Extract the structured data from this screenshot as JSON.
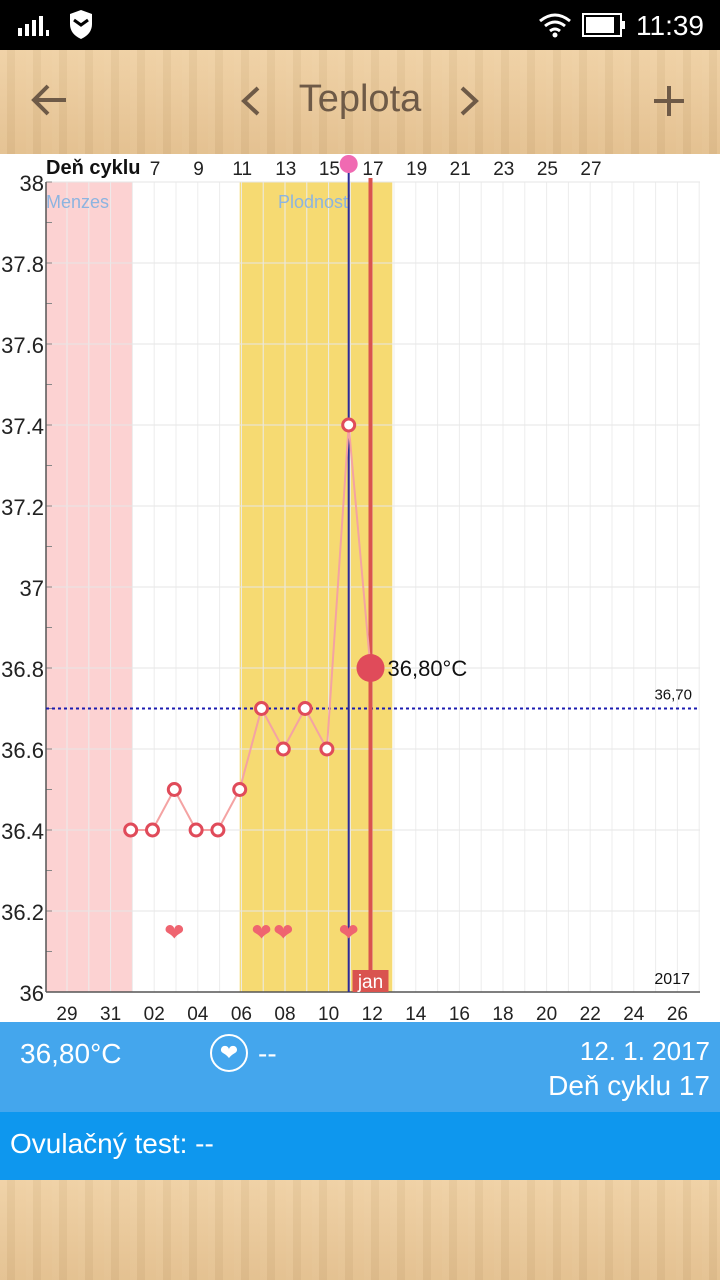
{
  "status_bar": {
    "time": "11:39"
  },
  "toolbar": {
    "title": "Teplota",
    "back_icon": "arrow-left-icon",
    "prev_icon": "chevron-left-icon",
    "next_icon": "chevron-right-icon",
    "add_icon": "plus-icon"
  },
  "colors": {
    "menses": "#fcd2d2",
    "fertile": "#f6da72",
    "line": "#f4a3a3",
    "marker": "#e04b5a",
    "today_line": "#d9534f",
    "ovulation_line": "#2b2b9a",
    "coverline": "#1b1bb0",
    "panel_blue": "#44a6ed",
    "panel_blue_dark": "#0e97ee"
  },
  "chart_data": {
    "type": "line",
    "ylim": [
      36,
      38
    ],
    "y_ticks": [
      "36",
      "36.2",
      "36.4",
      "36.6",
      "36.8",
      "37",
      "37.2",
      "37.4",
      "37.6",
      "37.8",
      "38"
    ],
    "x_tick_labels": [
      "29",
      "31",
      "02",
      "04",
      "06",
      "08",
      "10",
      "12",
      "14",
      "16",
      "18",
      "20",
      "22",
      "24",
      "26"
    ],
    "top_label": "Deň cyklu",
    "top_tick_labels": [
      "7",
      "9",
      "11",
      "13",
      "15",
      "17",
      "19",
      "21",
      "23",
      "25",
      "27"
    ],
    "menses_label": "Menzes",
    "fertile_label": "Plodnosť",
    "coverline": 36.7,
    "coverline_label": "36,70",
    "year_label": "2017",
    "month_label": "jan",
    "current_value_label": "36,80°C",
    "series": [
      {
        "x": [
          1,
          2,
          3,
          4,
          5,
          6,
          7,
          8,
          9,
          10,
          11,
          12
        ],
        "values": [
          36.4,
          36.4,
          36.5,
          36.4,
          36.4,
          36.5,
          36.7,
          36.6,
          36.7,
          36.6,
          37.4,
          36.8
        ]
      }
    ],
    "intercourse_days": [
      3,
      7,
      8,
      11
    ],
    "menses_range": [
      29,
      31
    ],
    "fertile_range": [
      6,
      12
    ],
    "ovulation_day": 11,
    "selected_day": 12
  },
  "info": {
    "temperature": "36,80°C",
    "intercourse": "--",
    "date": "12. 1. 2017",
    "cycle_day": "Deň cyklu 17"
  },
  "ovulation": {
    "label": "Ovulačný test: --"
  }
}
